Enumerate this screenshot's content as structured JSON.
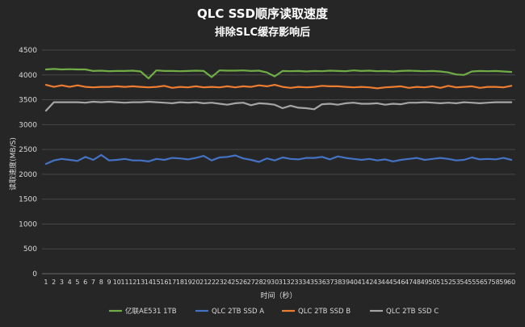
{
  "chart_data": {
    "type": "line",
    "title": "QLC SSD顺序读取速度",
    "subtitle": "排除SLC缓存影响后",
    "xlabel": "时间（秒）",
    "ylabel": "读取速度(MB/S)",
    "ylim": [
      0,
      4500
    ],
    "yticks": [
      0,
      500,
      1000,
      1500,
      2000,
      2500,
      3000,
      3500,
      4000,
      4500
    ],
    "grid": true,
    "legend_position": "bottom",
    "x": [
      1,
      2,
      3,
      4,
      5,
      6,
      7,
      8,
      9,
      10,
      11,
      12,
      13,
      14,
      15,
      16,
      17,
      18,
      19,
      20,
      21,
      22,
      23,
      24,
      25,
      26,
      27,
      28,
      29,
      30,
      31,
      32,
      33,
      34,
      35,
      36,
      37,
      38,
      39,
      40,
      41,
      42,
      43,
      44,
      45,
      46,
      47,
      48,
      49,
      50,
      51,
      52,
      53,
      54,
      55,
      56,
      57,
      58,
      59,
      60
    ],
    "series": [
      {
        "name": "亿联AE531 1TB",
        "color": "#70ad47",
        "values": [
          4110,
          4120,
          4110,
          4115,
          4110,
          4110,
          4080,
          4085,
          4075,
          4080,
          4080,
          4085,
          4070,
          3930,
          4090,
          4080,
          4080,
          4075,
          4080,
          4085,
          4080,
          3955,
          4090,
          4085,
          4085,
          4090,
          4080,
          4085,
          4050,
          3970,
          4080,
          4075,
          4080,
          4070,
          4080,
          4075,
          4085,
          4080,
          4075,
          4090,
          4080,
          4085,
          4075,
          4080,
          4070,
          4080,
          4085,
          4080,
          4075,
          4080,
          4070,
          4050,
          4010,
          4000,
          4070,
          4080,
          4075,
          4080,
          4070,
          4060
        ]
      },
      {
        "name": "QLC 2TB SSD A",
        "color": "#4472c4",
        "values": [
          2210,
          2280,
          2310,
          2290,
          2270,
          2350,
          2290,
          2390,
          2280,
          2290,
          2310,
          2280,
          2280,
          2260,
          2310,
          2290,
          2330,
          2320,
          2300,
          2330,
          2370,
          2280,
          2340,
          2350,
          2380,
          2320,
          2290,
          2250,
          2320,
          2280,
          2340,
          2310,
          2300,
          2330,
          2330,
          2350,
          2300,
          2360,
          2330,
          2310,
          2290,
          2310,
          2280,
          2300,
          2260,
          2290,
          2310,
          2330,
          2290,
          2310,
          2330,
          2310,
          2280,
          2290,
          2340,
          2300,
          2310,
          2300,
          2330,
          2290
        ]
      },
      {
        "name": "QLC 2TB SSD B",
        "color": "#ed7d31",
        "values": [
          3800,
          3760,
          3790,
          3760,
          3790,
          3760,
          3750,
          3760,
          3760,
          3770,
          3760,
          3770,
          3760,
          3750,
          3760,
          3780,
          3740,
          3760,
          3750,
          3770,
          3750,
          3760,
          3750,
          3770,
          3750,
          3770,
          3760,
          3790,
          3770,
          3800,
          3760,
          3740,
          3760,
          3750,
          3760,
          3780,
          3770,
          3770,
          3760,
          3750,
          3760,
          3750,
          3730,
          3750,
          3760,
          3770,
          3740,
          3760,
          3750,
          3770,
          3740,
          3780,
          3750,
          3760,
          3770,
          3740,
          3760,
          3760,
          3750,
          3780
        ]
      },
      {
        "name": "QLC 2TB SSD C",
        "color": "#a5a5a5",
        "values": [
          3280,
          3450,
          3450,
          3450,
          3450,
          3440,
          3460,
          3450,
          3460,
          3450,
          3440,
          3450,
          3450,
          3460,
          3450,
          3440,
          3430,
          3450,
          3440,
          3450,
          3430,
          3440,
          3420,
          3400,
          3430,
          3440,
          3390,
          3430,
          3420,
          3400,
          3330,
          3380,
          3340,
          3330,
          3310,
          3410,
          3420,
          3400,
          3430,
          3440,
          3420,
          3420,
          3430,
          3400,
          3420,
          3410,
          3440,
          3440,
          3450,
          3440,
          3430,
          3440,
          3430,
          3450,
          3440,
          3430,
          3440,
          3450,
          3450,
          3450
        ]
      }
    ]
  }
}
